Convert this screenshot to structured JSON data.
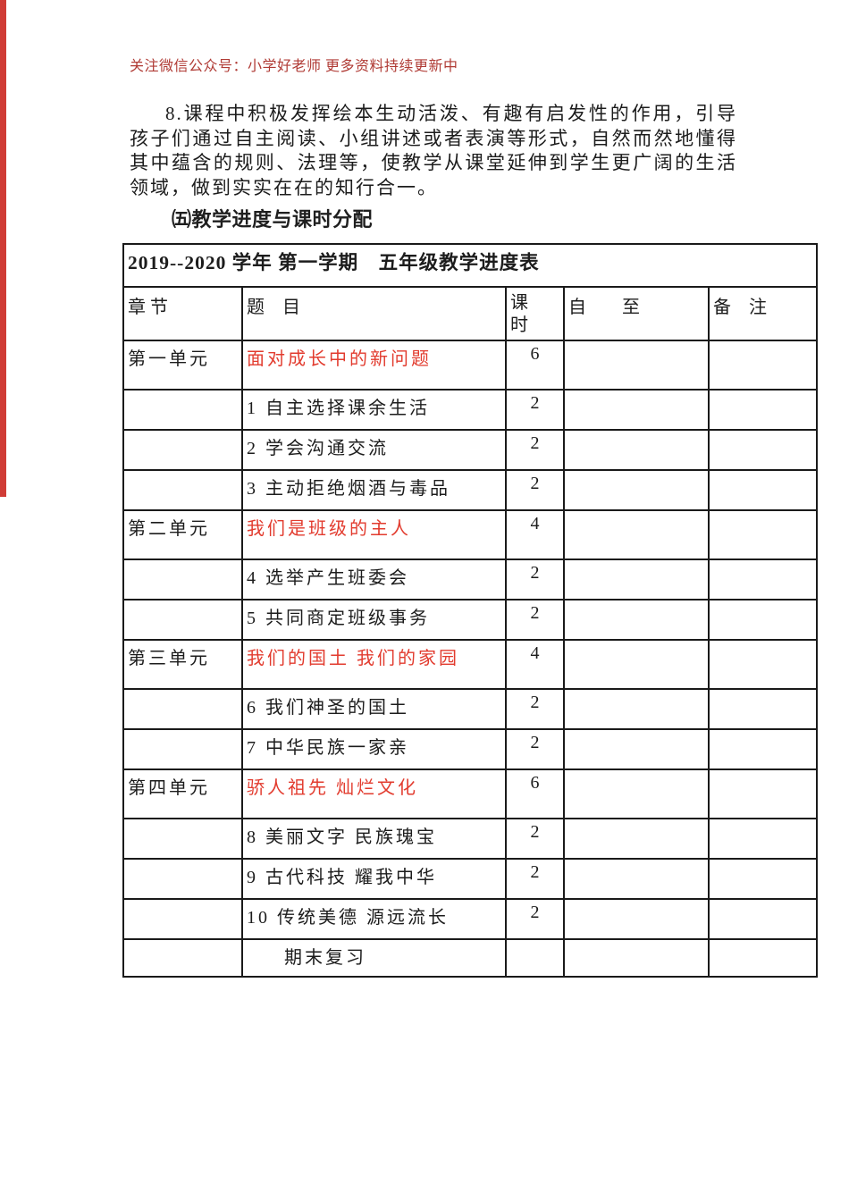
{
  "page": {
    "note": "关注微信公众号：小学好老师 更多资料持续更新中",
    "paragraph": "8.课程中积极发挥绘本生动活泼、有趣有启发性的作用，引导孩子们通过自主阅读、小组讲述或者表演等形式，自然而然地懂得其中蕴含的规则、法理等，使教学从课堂延伸到学生更广阔的生活领域，做到实实在在的知行合一。",
    "section_heading": "㈤教学进度与课时分配"
  },
  "table": {
    "title": "2019--2020 学年 第一学期　五年级教学进度表",
    "headers": {
      "chapter": "章 节",
      "topic": "题　目",
      "hours": "课\n时",
      "from_to": "自　　至",
      "remark": "备　注"
    },
    "rows": [
      {
        "chapter": "第一单元",
        "topic": "面对成长中的新问题",
        "hours": "6",
        "from_to": "",
        "remark": "",
        "type": "unit",
        "red": true,
        "indent": false
      },
      {
        "chapter": "",
        "topic": "1 自主选择课余生活",
        "hours": "2",
        "from_to": "",
        "remark": "",
        "type": "lesson",
        "red": false,
        "indent": false
      },
      {
        "chapter": "",
        "topic": "2 学会沟通交流",
        "hours": "2",
        "from_to": "",
        "remark": "",
        "type": "lesson",
        "red": false,
        "indent": false
      },
      {
        "chapter": "",
        "topic": "3 主动拒绝烟酒与毒品",
        "hours": "2",
        "from_to": "",
        "remark": "",
        "type": "lesson",
        "red": false,
        "indent": false
      },
      {
        "chapter": "第二单元",
        "topic": "我们是班级的主人",
        "hours": "4",
        "from_to": "",
        "remark": "",
        "type": "unit",
        "red": true,
        "indent": false
      },
      {
        "chapter": "",
        "topic": "4 选举产生班委会",
        "hours": "2",
        "from_to": "",
        "remark": "",
        "type": "lesson",
        "red": false,
        "indent": false
      },
      {
        "chapter": "",
        "topic": "5 共同商定班级事务",
        "hours": "2",
        "from_to": "",
        "remark": "",
        "type": "lesson",
        "red": false,
        "indent": false
      },
      {
        "chapter": "第三单元",
        "topic": "我们的国土 我们的家园",
        "hours": "4",
        "from_to": "",
        "remark": "",
        "type": "unit",
        "red": true,
        "indent": false
      },
      {
        "chapter": "",
        "topic": "6 我们神圣的国土",
        "hours": "2",
        "from_to": "",
        "remark": "",
        "type": "lesson",
        "red": false,
        "indent": false
      },
      {
        "chapter": "",
        "topic": "7 中华民族一家亲",
        "hours": "2",
        "from_to": "",
        "remark": "",
        "type": "lesson",
        "red": false,
        "indent": false
      },
      {
        "chapter": "第四单元",
        "topic": "骄人祖先 灿烂文化",
        "hours": "6",
        "from_to": "",
        "remark": "",
        "type": "unit",
        "red": true,
        "indent": false
      },
      {
        "chapter": "",
        "topic": "8 美丽文字 民族瑰宝",
        "hours": "2",
        "from_to": "",
        "remark": "",
        "type": "lesson",
        "red": false,
        "indent": false
      },
      {
        "chapter": "",
        "topic": "9 古代科技 耀我中华",
        "hours": "2",
        "from_to": "",
        "remark": "",
        "type": "lesson",
        "red": false,
        "indent": false
      },
      {
        "chapter": "",
        "topic": "10 传统美德 源远流长",
        "hours": "2",
        "from_to": "",
        "remark": "",
        "type": "lesson",
        "red": false,
        "indent": false
      },
      {
        "chapter": "",
        "topic": "期末复习",
        "hours": "",
        "from_to": "",
        "remark": "",
        "type": "final",
        "red": false,
        "indent": true
      }
    ]
  },
  "colors": {
    "accent_red": "#e23b2e",
    "note_red": "#b03b35",
    "stripe_red": "#d03c36"
  }
}
